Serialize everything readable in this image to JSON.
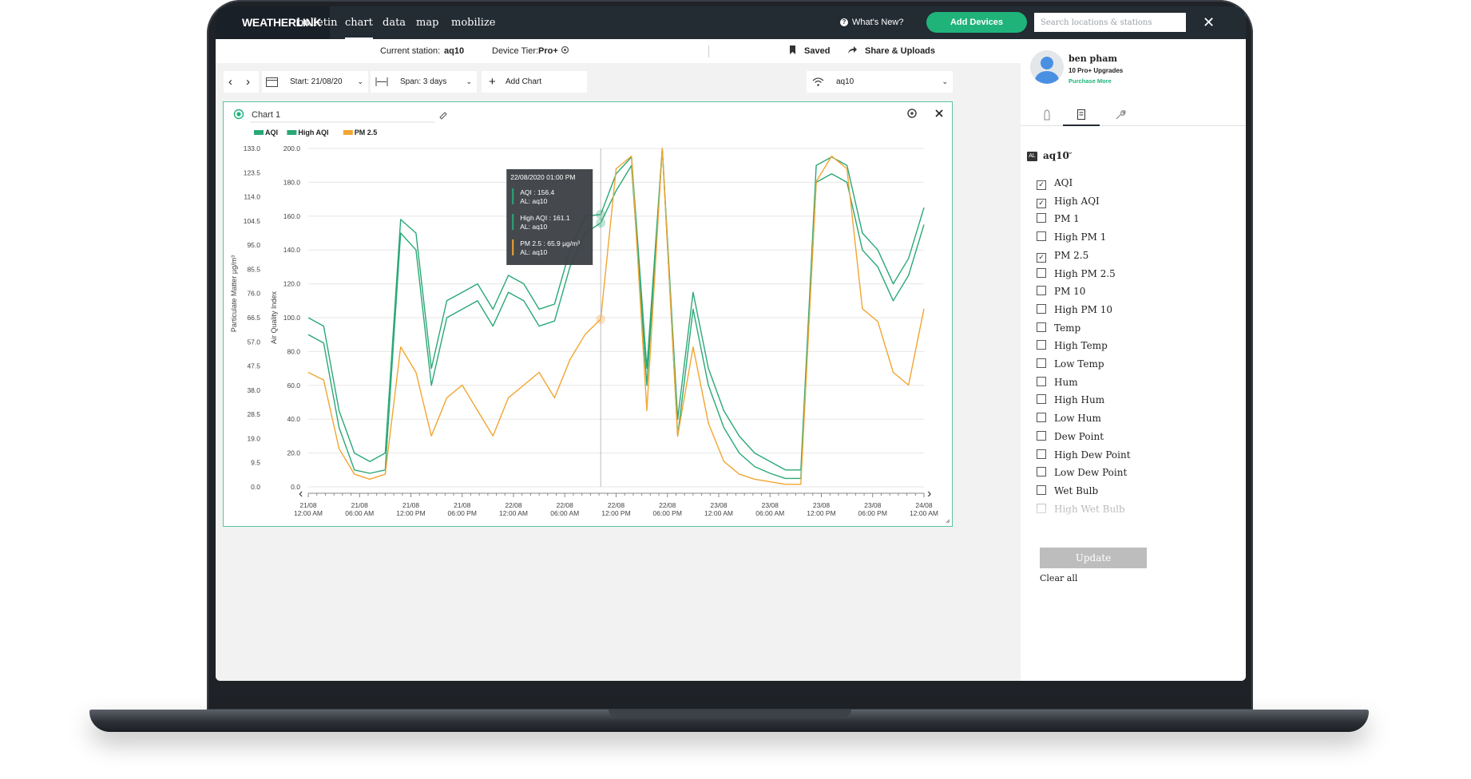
{
  "nav": {
    "logo": "WEATHERLINK",
    "links": [
      "bulletin",
      "chart",
      "data",
      "map",
      "mobilize"
    ],
    "active_link": "chart",
    "whats_new": "What's New?",
    "add_devices": "Add Devices",
    "search_placeholder": "Search locations & stations",
    "close": "✕"
  },
  "subheader": {
    "station_label": "Current station:",
    "station_value": "aq10",
    "tier_label": "Device Tier:",
    "tier_value": "Pro+",
    "saved": "Saved",
    "share": "Share & Uploads"
  },
  "toolbar": {
    "prev": "‹",
    "next": "›",
    "start": "Start: 21/08/20",
    "span": "Span: 3 days",
    "add_chart": "Add Chart",
    "station_select": "aq10"
  },
  "chart_panel": {
    "title": "Chart 1",
    "legend": [
      {
        "name": "AQI",
        "color": "#2aa876"
      },
      {
        "name": "High AQI",
        "color": "#2aa876"
      },
      {
        "name": "PM 2.5",
        "color": "#f2a531"
      }
    ],
    "tooltip": {
      "time": "22/08/2020 01:00 PM",
      "entries": [
        {
          "line1": "AQI : 156.4",
          "line2": "AL: aq10",
          "color": "#2aa876"
        },
        {
          "line1": "High AQI : 161.1",
          "line2": "AL: aq10",
          "color": "#2aa876"
        },
        {
          "line1": "PM 2.5 : 65.9 µg/m³",
          "line2": "AL: aq10",
          "color": "#f2a531"
        }
      ]
    }
  },
  "chart_data": {
    "type": "line",
    "x": [
      "21/08 12:00 AM",
      "21/08 02:00 AM",
      "21/08 04:00 AM",
      "21/08 06:00 AM",
      "21/08 08:00 AM",
      "21/08 10:00 AM",
      "21/08 12:00 PM",
      "21/08 02:00 PM",
      "21/08 04:00 PM",
      "21/08 06:00 PM",
      "21/08 08:00 PM",
      "21/08 10:00 PM",
      "22/08 12:00 AM",
      "22/08 02:00 AM",
      "22/08 04:00 AM",
      "22/08 06:00 AM",
      "22/08 08:00 AM",
      "22/08 10:00 AM",
      "22/08 12:00 PM",
      "22/08 01:00 PM",
      "22/08 02:00 PM",
      "22/08 03:00 PM",
      "22/08 04:00 PM",
      "22/08 05:00 PM",
      "22/08 06:00 PM",
      "22/08 07:00 PM",
      "22/08 08:00 PM",
      "22/08 10:00 PM",
      "23/08 12:00 AM",
      "23/08 02:00 AM",
      "23/08 04:00 AM",
      "23/08 06:00 AM",
      "23/08 08:00 AM",
      "23/08 10:00 AM",
      "23/08 12:00 PM",
      "23/08 02:00 PM",
      "23/08 04:00 PM",
      "23/08 06:00 PM",
      "23/08 08:00 PM",
      "23/08 10:00 PM",
      "24/08 12:00 AM"
    ],
    "x_tick_labels": [
      [
        "21/08",
        "12:00 AM"
      ],
      [
        "21/08",
        "06:00 AM"
      ],
      [
        "21/08",
        "12:00 PM"
      ],
      [
        "21/08",
        "06:00 PM"
      ],
      [
        "22/08",
        "12:00 AM"
      ],
      [
        "22/08",
        "06:00 AM"
      ],
      [
        "22/08",
        "12:00 PM"
      ],
      [
        "22/08",
        "06:00 PM"
      ],
      [
        "23/08",
        "12:00 AM"
      ],
      [
        "23/08",
        "06:00 AM"
      ],
      [
        "23/08",
        "12:00 PM"
      ],
      [
        "23/08",
        "06:00 PM"
      ],
      [
        "24/08",
        "12:00 AM"
      ]
    ],
    "y_left_inner": {
      "label": "Air Quality Index",
      "ylim": [
        0,
        200
      ],
      "ticks": [
        "0.0",
        "20.0",
        "40.0",
        "60.0",
        "80.0",
        "100.0",
        "120.0",
        "140.0",
        "160.0",
        "180.0",
        "200.0"
      ]
    },
    "y_left_outer": {
      "label": "Particulate Matter µg/m³",
      "ylim": [
        0,
        133
      ],
      "ticks": [
        "0.0",
        "9.5",
        "19.0",
        "28.5",
        "38.0",
        "47.5",
        "57.0",
        "66.5",
        "76.0",
        "85.5",
        "95.0",
        "104.5",
        "114.0",
        "123.5",
        "133.0"
      ]
    },
    "series": [
      {
        "name": "AQI",
        "axis": "aqi",
        "values": [
          90,
          85,
          35,
          10,
          8,
          10,
          150,
          140,
          60,
          100,
          105,
          110,
          95,
          115,
          110,
          95,
          98,
          130,
          150,
          156,
          175,
          190,
          60,
          200,
          30,
          105,
          60,
          35,
          20,
          12,
          8,
          5,
          5,
          180,
          185,
          180,
          140,
          130,
          110,
          125,
          155
        ]
      },
      {
        "name": "High AQI",
        "axis": "aqi",
        "values": [
          100,
          95,
          45,
          20,
          15,
          20,
          158,
          150,
          70,
          110,
          115,
          120,
          105,
          125,
          120,
          105,
          108,
          140,
          160,
          161,
          185,
          195,
          70,
          200,
          40,
          115,
          70,
          45,
          30,
          20,
          15,
          10,
          10,
          190,
          195,
          190,
          150,
          140,
          120,
          135,
          165
        ]
      },
      {
        "name": "PM 2.5",
        "axis": "pm",
        "values": [
          45,
          42,
          15,
          5,
          3,
          5,
          55,
          45,
          20,
          35,
          40,
          30,
          20,
          35,
          40,
          45,
          35,
          50,
          60,
          65.9,
          125,
          130,
          30,
          133,
          20,
          55,
          25,
          10,
          5,
          3,
          2,
          1,
          1,
          120,
          130,
          125,
          70,
          65,
          45,
          40,
          70
        ]
      }
    ],
    "grid": true,
    "crosshair_x": "22/08 01:00 PM"
  },
  "sidebar": {
    "user_name": "ben pham",
    "upgrades": "10 Pro+ Upgrades",
    "purchase": "Purchase More",
    "station_badge": "AL",
    "station": "aq10",
    "items": [
      {
        "label": "AQI",
        "checked": true
      },
      {
        "label": "High AQI",
        "checked": true
      },
      {
        "label": "PM 1",
        "checked": false
      },
      {
        "label": "High PM 1",
        "checked": false
      },
      {
        "label": "PM 2.5",
        "checked": true
      },
      {
        "label": "High PM 2.5",
        "checked": false
      },
      {
        "label": "PM 10",
        "checked": false
      },
      {
        "label": "High PM 10",
        "checked": false
      },
      {
        "label": "Temp",
        "checked": false
      },
      {
        "label": "High Temp",
        "checked": false
      },
      {
        "label": "Low Temp",
        "checked": false
      },
      {
        "label": "Hum",
        "checked": false
      },
      {
        "label": "High Hum",
        "checked": false
      },
      {
        "label": "Low Hum",
        "checked": false
      },
      {
        "label": "Dew Point",
        "checked": false
      },
      {
        "label": "High Dew Point",
        "checked": false
      },
      {
        "label": "Low Dew Point",
        "checked": false
      },
      {
        "label": "Wet Bulb",
        "checked": false
      },
      {
        "label": "High Wet Bulb",
        "checked": false
      }
    ],
    "update": "Update",
    "clear_all": "Clear all",
    "colors": {
      "accent": "#1fb37a",
      "nav": "#232b33",
      "pm": "#f2a531"
    }
  }
}
